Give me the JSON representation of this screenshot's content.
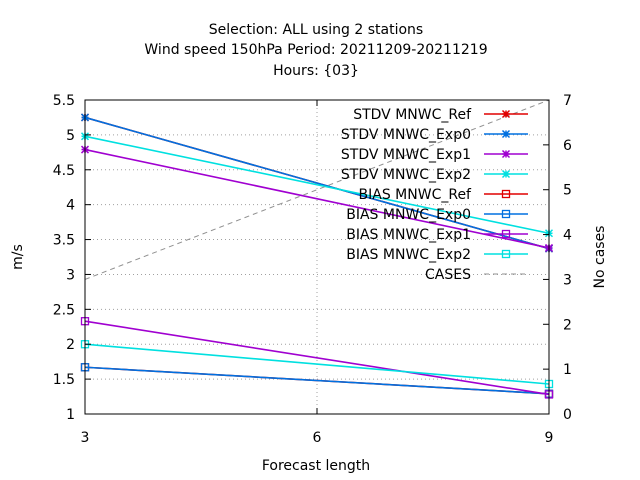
{
  "chart_data": {
    "type": "line",
    "title_lines": [
      "Selection: ALL using     2 stations",
      "Wind speed 150hPa   Period: 20211209-20211219",
      "Hours: {03}"
    ],
    "xlabel": "Forecast length",
    "ylabel": "m/s",
    "y2label": "No cases",
    "x": [
      3,
      9
    ],
    "xticks": [
      3,
      6,
      9
    ],
    "xlim": [
      3,
      9
    ],
    "ylim": [
      1,
      5.5
    ],
    "yticks": [
      "1",
      "1.5",
      "2",
      "2.5",
      "3",
      "3.5",
      "4",
      "4.5",
      "5",
      "5.5"
    ],
    "y2lim": [
      0,
      7
    ],
    "y2ticks": [
      "0",
      "1",
      "2",
      "3",
      "4",
      "5",
      "6",
      "7"
    ],
    "grid": true,
    "legend_position": "top-right",
    "series": [
      {
        "name": "STDV MNWC_Ref",
        "color": "#e00000",
        "marker": "x",
        "axis": "y1",
        "values": [
          5.25,
          3.37
        ]
      },
      {
        "name": "STDV MNWC_Exp0",
        "color": "#0070e0",
        "marker": "x",
        "axis": "y1",
        "values": [
          5.25,
          3.37
        ]
      },
      {
        "name": "STDV MNWC_Exp1",
        "color": "#a000d0",
        "marker": "x",
        "axis": "y1",
        "values": [
          4.79,
          3.38
        ]
      },
      {
        "name": "STDV MNWC_Exp2",
        "color": "#00e0e0",
        "marker": "x",
        "axis": "y1",
        "values": [
          4.98,
          3.59
        ]
      },
      {
        "name": "BIAS MNWC_Ref",
        "color": "#e00000",
        "marker": "square",
        "axis": "y1",
        "values": [
          1.67,
          1.29
        ]
      },
      {
        "name": "BIAS MNWC_Exp0",
        "color": "#0070e0",
        "marker": "square",
        "axis": "y1",
        "values": [
          1.67,
          1.29
        ]
      },
      {
        "name": "BIAS MNWC_Exp1",
        "color": "#a000d0",
        "marker": "square",
        "axis": "y1",
        "values": [
          2.33,
          1.28
        ]
      },
      {
        "name": "BIAS MNWC_Exp2",
        "color": "#00e0e0",
        "marker": "square",
        "axis": "y1",
        "values": [
          2.0,
          1.43
        ]
      },
      {
        "name": "CASES",
        "color": "#909090",
        "marker": "none",
        "dashed": true,
        "axis": "y2",
        "values": [
          3,
          7
        ]
      }
    ]
  }
}
